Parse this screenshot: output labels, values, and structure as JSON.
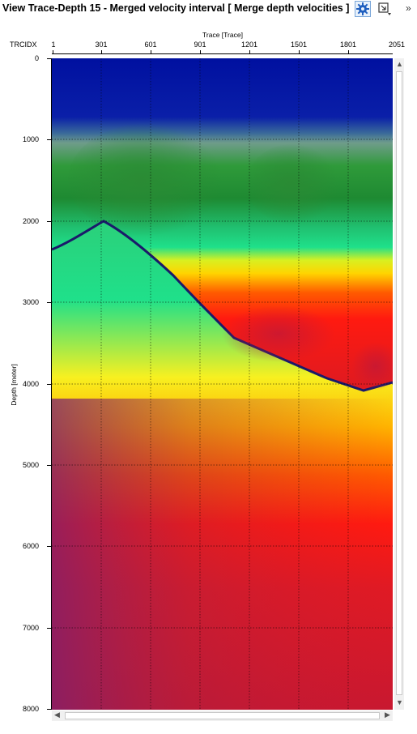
{
  "window": {
    "title": "View Trace-Depth 15 - Merged velocity interval [ Merge depth velocities ]"
  },
  "toolbar": {
    "settings_icon": "gear-icon",
    "window_icon": "maximize-restore-icon",
    "more_label": "»"
  },
  "axes": {
    "trace_key": "TRCIDX",
    "x_title": "Trace [Trace]",
    "x_ticks": [
      "1",
      "301",
      "601",
      "901",
      "1201",
      "1501",
      "1801",
      "2051"
    ],
    "y_title": "Depth [meter]",
    "y_ticks": [
      "0",
      "1000",
      "2000",
      "3000",
      "4000",
      "5000",
      "6000",
      "7000",
      "8000"
    ]
  },
  "scroll": {
    "up": "▲",
    "down": "▼",
    "left": "◀",
    "right": "▶"
  },
  "colors": {
    "accent": "#1f5fbf",
    "palette": [
      "#0010a0",
      "#0a3a8c",
      "#6f9c8a",
      "#2f9a3a",
      "#1e8a32",
      "#1fe08a",
      "#ffff00",
      "#ff9a00",
      "#ff1a10",
      "#c81830",
      "#7a2070"
    ],
    "grid": "#000000"
  }
}
